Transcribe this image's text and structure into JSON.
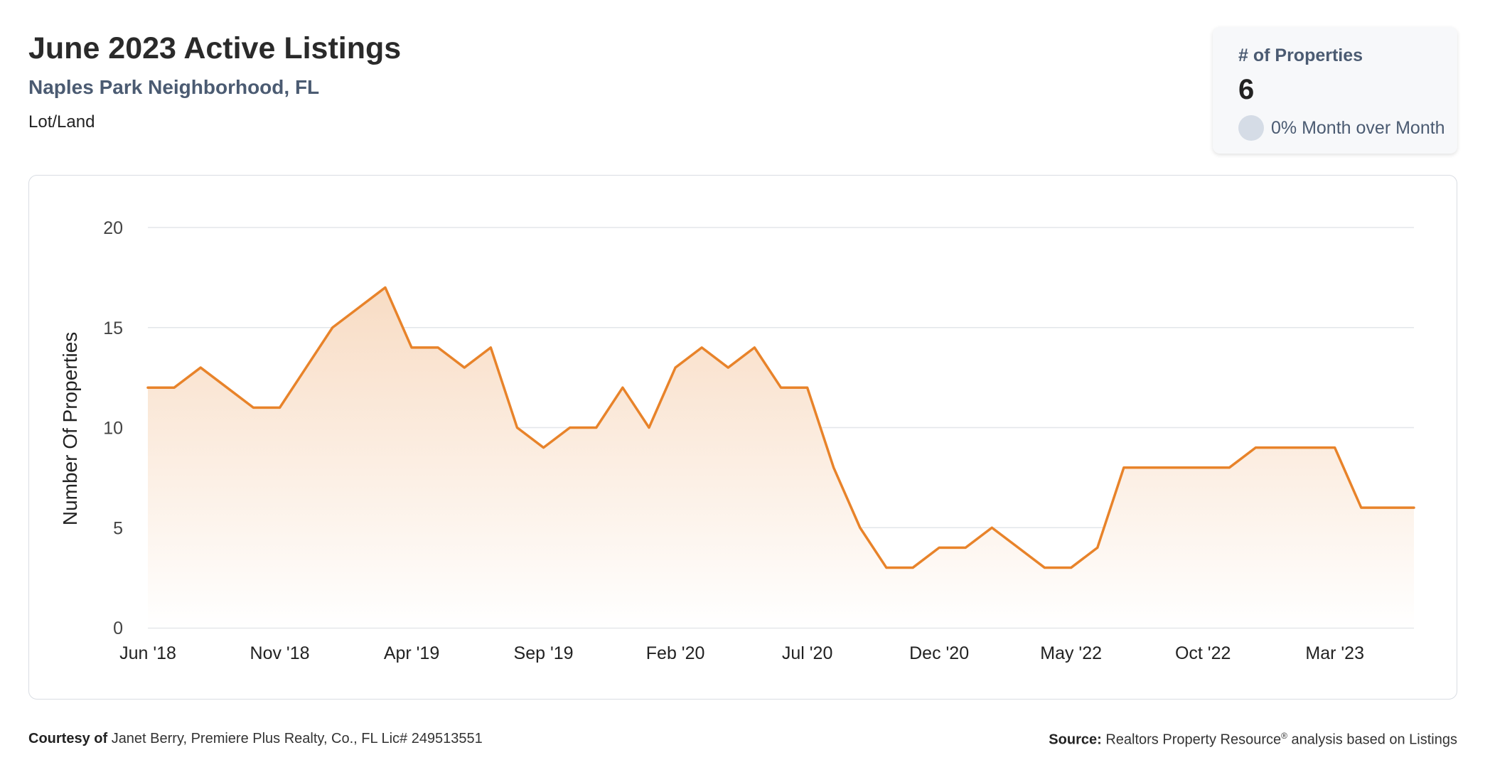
{
  "header": {
    "title": "June 2023 Active Listings",
    "subtitle": "Naples Park Neighborhood, FL",
    "category": "Lot/Land"
  },
  "kpi": {
    "label": "# of Properties",
    "value": "6",
    "change": "0% Month over Month"
  },
  "footer": {
    "courtesy_label": "Courtesy of",
    "courtesy_text": "Janet Berry, Premiere Plus Realty, Co., FL Lic# 249513551",
    "source_label": "Source:",
    "source_text": "Realtors Property Resource",
    "source_mark": "®",
    "source_suffix": "analysis based on Listings"
  },
  "colors": {
    "line": "#e8832a",
    "fill_top": "#f8dcc4",
    "fill_bottom": "#ffffff",
    "grid": "#e3e6ea",
    "text_muted": "#4b5b72"
  },
  "chart_data": {
    "type": "area",
    "ylabel": "Number Of Properties",
    "ylim": [
      0,
      20
    ],
    "yticks": [
      0,
      5,
      10,
      15,
      20
    ],
    "xtick_labels": [
      "Jun '18",
      "Nov '18",
      "Apr '19",
      "Sep '19",
      "Feb '20",
      "Jul '20",
      "Dec '20",
      "May '22",
      "Oct '22",
      "Mar '23"
    ],
    "xtick_every": 5,
    "grid": true,
    "legend": "none",
    "values": [
      12,
      12,
      13,
      12,
      11,
      11,
      13,
      15,
      16,
      17,
      14,
      14,
      13,
      14,
      10,
      9,
      10,
      10,
      12,
      10,
      13,
      14,
      13,
      14,
      12,
      12,
      8,
      5,
      3,
      3,
      4,
      4,
      5,
      4,
      3,
      3,
      4,
      8,
      8,
      8,
      8,
      8,
      9,
      9,
      9,
      9,
      6,
      6,
      6
    ]
  }
}
